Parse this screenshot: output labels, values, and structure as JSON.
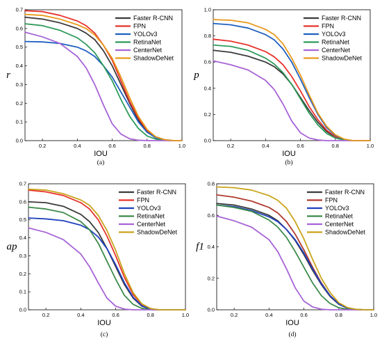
{
  "chart_data": [
    {
      "type": "line",
      "panel": "(a)",
      "xlabel": "IOU",
      "ylabel": "r",
      "xlim": [
        0.1,
        1.0
      ],
      "ylim": [
        0,
        0.7
      ],
      "xticks": [
        0.2,
        0.4,
        0.6,
        0.8,
        1.0
      ],
      "yticks": [
        0.0,
        0.1,
        0.2,
        0.3,
        0.4,
        0.5,
        0.6,
        0.7
      ],
      "ytick_decimals": 1,
      "legend": "top-right",
      "x": [
        0.1,
        0.2,
        0.3,
        0.4,
        0.45,
        0.5,
        0.55,
        0.6,
        0.65,
        0.7,
        0.75,
        0.8,
        0.85,
        0.9,
        0.95,
        1.0
      ],
      "series": [
        {
          "name": "Faster R-CNN",
          "color": "#3a3a3a",
          "values": [
            0.66,
            0.65,
            0.63,
            0.6,
            0.575,
            0.54,
            0.48,
            0.4,
            0.3,
            0.2,
            0.11,
            0.05,
            0.02,
            0.005,
            0.0,
            0.0
          ]
        },
        {
          "name": "FPN",
          "color": "#e8322b",
          "values": [
            0.695,
            0.69,
            0.67,
            0.64,
            0.615,
            0.575,
            0.51,
            0.43,
            0.32,
            0.21,
            0.12,
            0.055,
            0.02,
            0.005,
            0.0,
            0.0
          ]
        },
        {
          "name": "YOLOv3",
          "color": "#1f5fbf",
          "values": [
            0.53,
            0.528,
            0.52,
            0.5,
            0.48,
            0.45,
            0.4,
            0.34,
            0.26,
            0.18,
            0.1,
            0.045,
            0.015,
            0.003,
            0.0,
            0.0
          ]
        },
        {
          "name": "RetinaNet",
          "color": "#2e9a5a",
          "values": [
            0.625,
            0.615,
            0.59,
            0.55,
            0.515,
            0.47,
            0.4,
            0.32,
            0.22,
            0.13,
            0.065,
            0.025,
            0.008,
            0.002,
            0.0,
            0.0
          ]
        },
        {
          "name": "CenterNet",
          "color": "#a763d6",
          "values": [
            0.58,
            0.555,
            0.52,
            0.45,
            0.39,
            0.3,
            0.19,
            0.09,
            0.035,
            0.01,
            0.002,
            0.0,
            0.0,
            0.0,
            0.0,
            0.0
          ]
        },
        {
          "name": "ShadowDeNet",
          "color": "#e89a1c",
          "values": [
            0.675,
            0.67,
            0.65,
            0.62,
            0.6,
            0.565,
            0.51,
            0.44,
            0.34,
            0.23,
            0.13,
            0.06,
            0.02,
            0.005,
            0.0,
            0.0
          ]
        }
      ]
    },
    {
      "type": "line",
      "panel": "(b)",
      "xlabel": "IOU",
      "ylabel": "p",
      "xlim": [
        0.1,
        1.0
      ],
      "ylim": [
        0,
        1.0
      ],
      "xticks": [
        0.2,
        0.4,
        0.6,
        0.8,
        1.0
      ],
      "yticks": [
        0.0,
        0.2,
        0.4,
        0.6,
        0.8,
        1.0
      ],
      "ytick_decimals": 1,
      "legend": "top-right",
      "x": [
        0.1,
        0.2,
        0.3,
        0.4,
        0.45,
        0.5,
        0.55,
        0.6,
        0.65,
        0.7,
        0.75,
        0.8,
        0.85,
        0.9,
        0.95,
        1.0
      ],
      "series": [
        {
          "name": "Faster R-CNN",
          "color": "#3a3a3a",
          "values": [
            0.69,
            0.675,
            0.645,
            0.6,
            0.565,
            0.51,
            0.43,
            0.33,
            0.23,
            0.14,
            0.07,
            0.025,
            0.008,
            0.0,
            0.0,
            0.0
          ]
        },
        {
          "name": "FPN",
          "color": "#e8322b",
          "values": [
            0.775,
            0.76,
            0.73,
            0.68,
            0.64,
            0.58,
            0.49,
            0.38,
            0.26,
            0.16,
            0.08,
            0.03,
            0.008,
            0.0,
            0.0,
            0.0
          ]
        },
        {
          "name": "YOLOv3",
          "color": "#1f5fbf",
          "values": [
            0.895,
            0.885,
            0.86,
            0.81,
            0.77,
            0.7,
            0.6,
            0.47,
            0.33,
            0.2,
            0.1,
            0.04,
            0.01,
            0.0,
            0.0,
            0.0
          ]
        },
        {
          "name": "RetinaNet",
          "color": "#2e9a5a",
          "values": [
            0.73,
            0.72,
            0.69,
            0.63,
            0.585,
            0.52,
            0.43,
            0.32,
            0.21,
            0.12,
            0.055,
            0.02,
            0.005,
            0.0,
            0.0,
            0.0
          ]
        },
        {
          "name": "CenterNet",
          "color": "#a763d6",
          "values": [
            0.61,
            0.58,
            0.54,
            0.46,
            0.39,
            0.28,
            0.15,
            0.06,
            0.02,
            0.005,
            0.0,
            0.0,
            0.0,
            0.0,
            0.0,
            0.0
          ]
        },
        {
          "name": "ShadowDeNet",
          "color": "#e89a1c",
          "values": [
            0.925,
            0.92,
            0.9,
            0.85,
            0.81,
            0.74,
            0.63,
            0.5,
            0.35,
            0.21,
            0.11,
            0.045,
            0.012,
            0.0,
            0.0,
            0.0
          ]
        }
      ]
    },
    {
      "type": "line",
      "panel": "(c)",
      "xlabel": "IOU",
      "ylabel": "ap",
      "xlim": [
        0.1,
        1.0
      ],
      "ylim": [
        0,
        0.7
      ],
      "xticks": [
        0.2,
        0.4,
        0.6,
        0.8,
        1.0
      ],
      "yticks": [
        0.0,
        0.1,
        0.2,
        0.3,
        0.4,
        0.5,
        0.6,
        0.7
      ],
      "ytick_decimals": 1,
      "legend": "top-right",
      "x": [
        0.1,
        0.2,
        0.3,
        0.4,
        0.45,
        0.5,
        0.55,
        0.6,
        0.65,
        0.7,
        0.75,
        0.8,
        0.85,
        0.9,
        0.95,
        1.0
      ],
      "series": [
        {
          "name": "Faster R-CNN",
          "color": "#3a3a3a",
          "values": [
            0.6,
            0.595,
            0.575,
            0.53,
            0.49,
            0.43,
            0.34,
            0.24,
            0.14,
            0.065,
            0.02,
            0.004,
            0.0,
            0.0,
            0.0,
            0.0
          ]
        },
        {
          "name": "FPN",
          "color": "#e8322b",
          "values": [
            0.665,
            0.655,
            0.635,
            0.595,
            0.56,
            0.5,
            0.41,
            0.3,
            0.18,
            0.085,
            0.03,
            0.006,
            0.0,
            0.0,
            0.0,
            0.0
          ]
        },
        {
          "name": "YOLOv3",
          "color": "#1f3fbf",
          "values": [
            0.51,
            0.505,
            0.495,
            0.47,
            0.445,
            0.405,
            0.34,
            0.25,
            0.15,
            0.07,
            0.022,
            0.004,
            0.0,
            0.0,
            0.0,
            0.0
          ]
        },
        {
          "name": "RetinaNet",
          "color": "#3c8a4a",
          "values": [
            0.57,
            0.56,
            0.54,
            0.49,
            0.445,
            0.37,
            0.27,
            0.17,
            0.08,
            0.03,
            0.008,
            0.001,
            0.0,
            0.0,
            0.0,
            0.0
          ]
        },
        {
          "name": "CenterNet",
          "color": "#a763d6",
          "values": [
            0.455,
            0.43,
            0.39,
            0.31,
            0.24,
            0.15,
            0.065,
            0.02,
            0.004,
            0.0,
            0.0,
            0.0,
            0.0,
            0.0,
            0.0,
            0.0
          ]
        },
        {
          "name": "ShadowDeNet",
          "color": "#c9a41a",
          "values": [
            0.67,
            0.665,
            0.645,
            0.61,
            0.58,
            0.525,
            0.44,
            0.33,
            0.2,
            0.095,
            0.033,
            0.007,
            0.0,
            0.0,
            0.0,
            0.0
          ]
        }
      ]
    },
    {
      "type": "line",
      "panel": "(d)",
      "xlabel": "IOU",
      "ylabel": "f1",
      "xlim": [
        0.1,
        1.0
      ],
      "ylim": [
        0,
        0.8
      ],
      "xticks": [
        0.2,
        0.4,
        0.6,
        0.8,
        1.0
      ],
      "yticks": [
        0.0,
        0.2,
        0.4,
        0.6,
        0.8
      ],
      "ytick_decimals": 1,
      "legend": "top-right",
      "x": [
        0.1,
        0.2,
        0.3,
        0.4,
        0.45,
        0.5,
        0.55,
        0.6,
        0.65,
        0.7,
        0.75,
        0.8,
        0.85,
        0.9,
        0.95,
        1.0
      ],
      "series": [
        {
          "name": "Faster R-CNN",
          "color": "#3a3a3a",
          "values": [
            0.675,
            0.665,
            0.64,
            0.6,
            0.565,
            0.51,
            0.44,
            0.35,
            0.25,
            0.16,
            0.085,
            0.035,
            0.01,
            0.002,
            0.0,
            0.0
          ]
        },
        {
          "name": "FPN",
          "color": "#b03a2e",
          "values": [
            0.73,
            0.715,
            0.69,
            0.65,
            0.615,
            0.56,
            0.48,
            0.38,
            0.27,
            0.17,
            0.09,
            0.038,
            0.012,
            0.002,
            0.0,
            0.0
          ]
        },
        {
          "name": "YOLOv3",
          "color": "#1f3fbf",
          "values": [
            0.665,
            0.655,
            0.63,
            0.59,
            0.56,
            0.51,
            0.445,
            0.36,
            0.26,
            0.165,
            0.09,
            0.037,
            0.011,
            0.002,
            0.0,
            0.0
          ]
        },
        {
          "name": "RetinaNet",
          "color": "#3c8a4a",
          "values": [
            0.665,
            0.65,
            0.625,
            0.57,
            0.525,
            0.46,
            0.37,
            0.27,
            0.17,
            0.09,
            0.04,
            0.013,
            0.003,
            0.0,
            0.0,
            0.0
          ]
        },
        {
          "name": "CenterNet",
          "color": "#a763d6",
          "values": [
            0.595,
            0.565,
            0.525,
            0.445,
            0.37,
            0.26,
            0.14,
            0.055,
            0.018,
            0.004,
            0.0,
            0.0,
            0.0,
            0.0,
            0.0,
            0.0
          ]
        },
        {
          "name": "ShadowDeNet",
          "color": "#c9a41a",
          "values": [
            0.78,
            0.775,
            0.76,
            0.725,
            0.695,
            0.645,
            0.56,
            0.45,
            0.32,
            0.2,
            0.11,
            0.045,
            0.014,
            0.003,
            0.0,
            0.0
          ]
        }
      ]
    }
  ]
}
